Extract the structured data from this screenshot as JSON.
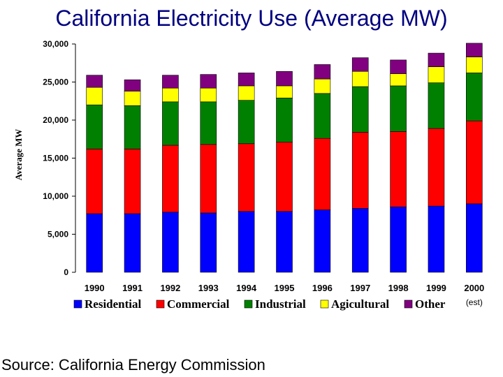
{
  "chart_data": {
    "type": "bar",
    "stacked": true,
    "title": "California Electricity Use (Average MW)",
    "xlabel": "",
    "ylabel": "Average MW",
    "ylim": [
      0,
      30000
    ],
    "yticks": [
      "0",
      "5,000",
      "10,000",
      "15,000",
      "20,000",
      "25,000",
      "30,000"
    ],
    "yticks_values": [
      0,
      5000,
      10000,
      15000,
      20000,
      25000,
      30000
    ],
    "categories": [
      "1990",
      "1991",
      "1992",
      "1993",
      "1994",
      "1995",
      "1996",
      "1997",
      "1998",
      "1999",
      "2000"
    ],
    "category_sublabels": [
      "",
      "",
      "",
      "",
      "",
      "",
      "",
      "",
      "",
      "",
      "(est)"
    ],
    "series": [
      {
        "name": "Residential",
        "color": "#0000ff",
        "values": [
          7700,
          7700,
          7900,
          7800,
          8000,
          8000,
          8200,
          8400,
          8600,
          8700,
          9000
        ]
      },
      {
        "name": "Commercial",
        "color": "#ff0000",
        "values": [
          8500,
          8500,
          8800,
          9000,
          8900,
          9100,
          9400,
          10000,
          9900,
          10200,
          10900
        ]
      },
      {
        "name": "Industrial",
        "color": "#008000",
        "values": [
          5800,
          5700,
          5700,
          5600,
          5700,
          5800,
          5900,
          6000,
          6000,
          6000,
          6300
        ]
      },
      {
        "name": "Agicultural",
        "color": "#ffff00",
        "values": [
          2300,
          1900,
          1800,
          1800,
          1900,
          1600,
          1900,
          2000,
          1600,
          2100,
          2100
        ]
      },
      {
        "name": "Other",
        "color": "#800080",
        "values": [
          1600,
          1500,
          1700,
          1800,
          1700,
          1900,
          1900,
          1800,
          1800,
          1800,
          1800
        ]
      }
    ]
  },
  "source": "Source:  California Energy Commission"
}
